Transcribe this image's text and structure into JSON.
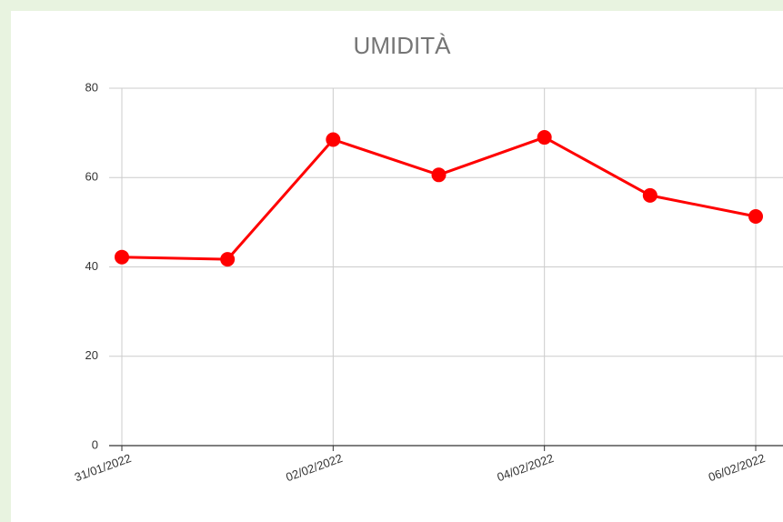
{
  "chart_data": {
    "type": "line",
    "title": "UMIDITÀ",
    "categories": [
      "31/01/2022",
      null,
      "02/02/2022",
      null,
      "04/02/2022",
      null,
      "06/02/2022"
    ],
    "series": [
      {
        "name": "Umidità",
        "color": "#ff0000",
        "values": [
          42.2,
          41.7,
          68.5,
          60.6,
          69,
          56,
          51.3
        ]
      }
    ],
    "ylim": [
      0,
      80
    ],
    "yticks": [
      0,
      20,
      40,
      60,
      80
    ],
    "grid": true
  }
}
